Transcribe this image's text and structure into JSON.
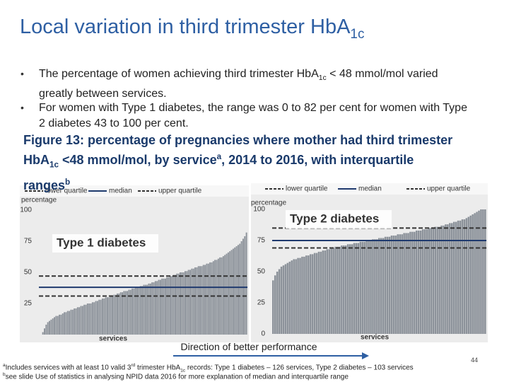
{
  "title": [
    {
      "text": "Local variation in third trimester HbA"
    },
    {
      "text": "1c",
      "style": "sub"
    }
  ],
  "bullets": [
    [
      {
        "text": "The percentage of women achieving third trimester HbA"
      },
      {
        "text": "1c",
        "style": "sub"
      },
      {
        "text": " < 48 mmol/mol varied greatly between services."
      }
    ],
    [
      {
        "text": "For women with Type 1 diabetes, the range was 0 to 82 per cent for women with Type 2 diabetes 43 to 100 per cent."
      }
    ]
  ],
  "caption": [
    {
      "text": "Figure 13: percentage of pregnancies where mother had third trimester HbA"
    },
    {
      "text": "1c",
      "style": "sub"
    },
    {
      "text": " <48 mmol/mol, by service"
    },
    {
      "text": "a",
      "style": "sup"
    },
    {
      "text": ", 2014 to 2016, with interquartile ranges"
    },
    {
      "text": "b",
      "style": "sup"
    }
  ],
  "direction_label": "Direction of better performance",
  "footnotes": [
    [
      {
        "text": "a",
        "style": "sup"
      },
      {
        "text": "Includes services with at least 10 valid 3"
      },
      {
        "text": "rd",
        "style": "sup"
      },
      {
        "text": " trimester HbA"
      },
      {
        "text": "1c",
        "style": "sub"
      },
      {
        "text": " records: Type 1 diabetes – 126 services, Type 2 diabetes – 103 services"
      }
    ],
    [
      {
        "text": "b",
        "style": "sup"
      },
      {
        "text": "see slide Use of statistics in analysing NPID data 2016 for more explanation of median and interquartile range"
      }
    ]
  ],
  "page_number": "44",
  "chart_data": [
    {
      "type": "bar",
      "panel_label": "Type 1 diabetes",
      "y_label": "percentage",
      "x_label": "services",
      "color": "#8c929a",
      "ylim": [
        0,
        100
      ],
      "yticks": [
        25,
        50,
        75,
        100
      ],
      "reference_lines": [
        {
          "name": "lower quartile",
          "value": 31,
          "style": "dashed",
          "color": "#333333"
        },
        {
          "name": "median",
          "value": 38,
          "style": "solid",
          "color": "#1f3a6e"
        },
        {
          "name": "upper quartile",
          "value": 47,
          "style": "dashed",
          "color": "#333333"
        }
      ],
      "values": [
        0,
        0,
        2,
        5,
        8,
        10,
        11,
        12,
        13,
        14,
        15,
        15,
        16,
        16,
        17,
        18,
        18,
        19,
        19,
        20,
        20,
        21,
        21,
        22,
        22,
        23,
        23,
        24,
        24,
        25,
        25,
        25,
        26,
        26,
        27,
        27,
        28,
        28,
        29,
        29,
        30,
        30,
        30,
        31,
        31,
        32,
        32,
        33,
        33,
        34,
        34,
        35,
        35,
        35,
        36,
        36,
        37,
        37,
        38,
        38,
        38,
        39,
        39,
        40,
        40,
        40,
        41,
        41,
        42,
        42,
        43,
        43,
        44,
        44,
        45,
        45,
        45,
        46,
        46,
        47,
        47,
        48,
        48,
        49,
        49,
        50,
        50,
        50,
        51,
        51,
        52,
        52,
        53,
        53,
        54,
        54,
        55,
        55,
        55,
        56,
        56,
        57,
        57,
        58,
        58,
        59,
        60,
        60,
        61,
        62,
        62,
        63,
        64,
        65,
        66,
        67,
        68,
        69,
        70,
        71,
        72,
        73,
        75,
        77,
        79,
        82
      ]
    },
    {
      "type": "bar",
      "panel_label": "Type 2 diabetes",
      "y_label": "percentage",
      "x_label": "services",
      "color": "#8c929a",
      "ylim": [
        0,
        100
      ],
      "yticks": [
        0,
        25,
        50,
        75,
        100
      ],
      "reference_lines": [
        {
          "name": "lower quartile",
          "value": 69,
          "style": "dashed",
          "color": "#333333"
        },
        {
          "name": "median",
          "value": 75,
          "style": "solid",
          "color": "#1f3a6e"
        },
        {
          "name": "upper quartile",
          "value": 85,
          "style": "dashed",
          "color": "#333333"
        }
      ],
      "values": [
        43,
        47,
        50,
        52,
        54,
        55,
        56,
        57,
        58,
        59,
        60,
        60,
        61,
        61,
        62,
        62,
        63,
        63,
        64,
        64,
        65,
        65,
        66,
        66,
        67,
        67,
        68,
        68,
        69,
        69,
        70,
        70,
        70,
        71,
        71,
        71,
        72,
        72,
        72,
        73,
        73,
        73,
        74,
        74,
        74,
        75,
        75,
        75,
        76,
        76,
        76,
        77,
        77,
        77,
        78,
        78,
        78,
        79,
        79,
        79,
        80,
        80,
        80,
        81,
        81,
        81,
        82,
        82,
        82,
        83,
        83,
        83,
        84,
        84,
        84,
        85,
        85,
        85,
        86,
        86,
        86,
        87,
        87,
        88,
        88,
        89,
        89,
        90,
        90,
        91,
        91,
        92,
        92,
        93,
        94,
        95,
        96,
        97,
        98,
        99,
        100,
        100,
        100
      ]
    }
  ]
}
